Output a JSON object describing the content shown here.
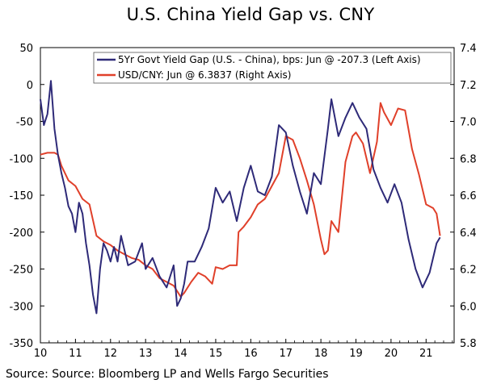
{
  "chart_data": {
    "type": "line",
    "title": "U.S. China Yield Gap vs. CNY",
    "source": "Source: Source: Bloomberg LP and Wells Fargo Securities",
    "grid": false,
    "legend_placement": "top-right",
    "x_axis": {
      "min": 10,
      "max": 21.8,
      "ticks": [
        "10",
        "11",
        "12",
        "13",
        "14",
        "15",
        "16",
        "17",
        "18",
        "19",
        "20",
        "21"
      ]
    },
    "y_left": {
      "min": -350,
      "max": 50,
      "ticks": [
        "50",
        "0",
        "-50",
        "-100",
        "-150",
        "-200",
        "-250",
        "-300",
        "-350"
      ]
    },
    "y_right": {
      "min": 5.8,
      "max": 7.4,
      "ticks": [
        "7.4",
        "7.2",
        "7.0",
        "6.8",
        "6.6",
        "6.4",
        "6.2",
        "6.0",
        "5.8"
      ]
    },
    "series": [
      {
        "name": "5Yr Govt Yield Gap (U.S. - China), bps: Jun @ -207.3 (Left Axis)",
        "axis": "left",
        "color": "#2e2a78",
        "x": [
          10.0,
          10.1,
          10.2,
          10.3,
          10.4,
          10.5,
          10.6,
          10.7,
          10.8,
          10.9,
          11.0,
          11.1,
          11.2,
          11.3,
          11.4,
          11.5,
          11.6,
          11.7,
          11.8,
          11.9,
          12.0,
          12.1,
          12.2,
          12.3,
          12.5,
          12.7,
          12.9,
          13.0,
          13.2,
          13.4,
          13.6,
          13.8,
          13.9,
          14.0,
          14.1,
          14.2,
          14.4,
          14.6,
          14.8,
          15.0,
          15.2,
          15.4,
          15.6,
          15.8,
          16.0,
          16.2,
          16.4,
          16.6,
          16.8,
          17.0,
          17.2,
          17.4,
          17.6,
          17.8,
          18.0,
          18.2,
          18.3,
          18.5,
          18.7,
          18.9,
          19.1,
          19.3,
          19.5,
          19.7,
          19.9,
          20.1,
          20.3,
          20.5,
          20.7,
          20.9,
          21.1,
          21.3,
          21.4
        ],
        "values": [
          -20,
          -55,
          -40,
          5,
          -60,
          -95,
          -120,
          -140,
          -165,
          -175,
          -200,
          -160,
          -175,
          -215,
          -245,
          -285,
          -310,
          -250,
          -215,
          -225,
          -240,
          -220,
          -240,
          -205,
          -245,
          -240,
          -215,
          -250,
          -235,
          -260,
          -275,
          -245,
          -300,
          -290,
          -270,
          -240,
          -240,
          -220,
          -195,
          -140,
          -160,
          -145,
          -185,
          -140,
          -110,
          -145,
          -150,
          -125,
          -55,
          -65,
          -110,
          -145,
          -175,
          -120,
          -135,
          -60,
          -20,
          -70,
          -45,
          -25,
          -45,
          -60,
          -115,
          -140,
          -160,
          -135,
          -160,
          -210,
          -250,
          -275,
          -255,
          -215,
          -207
        ]
      },
      {
        "name": "USD/CNY: Jun @ 6.3837 (Right Axis)",
        "axis": "right",
        "color": "#e0402a",
        "x": [
          10.0,
          10.2,
          10.4,
          10.5,
          10.6,
          10.8,
          11.0,
          11.2,
          11.4,
          11.6,
          11.8,
          12.0,
          12.2,
          12.4,
          12.6,
          12.8,
          13.0,
          13.2,
          13.4,
          13.6,
          13.8,
          14.0,
          14.1,
          14.3,
          14.5,
          14.7,
          14.9,
          15.0,
          15.2,
          15.4,
          15.6,
          15.65,
          15.8,
          16.0,
          16.2,
          16.4,
          16.6,
          16.8,
          17.0,
          17.2,
          17.4,
          17.6,
          17.8,
          18.0,
          18.1,
          18.2,
          18.3,
          18.5,
          18.7,
          18.9,
          19.0,
          19.2,
          19.4,
          19.6,
          19.7,
          19.8,
          20.0,
          20.2,
          20.4,
          20.6,
          20.8,
          21.0,
          21.2,
          21.3,
          21.4
        ],
        "values": [
          6.82,
          6.83,
          6.83,
          6.82,
          6.76,
          6.68,
          6.65,
          6.58,
          6.55,
          6.38,
          6.35,
          6.33,
          6.3,
          6.28,
          6.26,
          6.25,
          6.22,
          6.2,
          6.15,
          6.13,
          6.11,
          6.05,
          6.07,
          6.13,
          6.18,
          6.16,
          6.12,
          6.21,
          6.2,
          6.22,
          6.22,
          6.4,
          6.43,
          6.48,
          6.55,
          6.58,
          6.65,
          6.72,
          6.92,
          6.9,
          6.8,
          6.68,
          6.55,
          6.36,
          6.28,
          6.3,
          6.46,
          6.4,
          6.78,
          6.92,
          6.94,
          6.88,
          6.72,
          6.89,
          7.1,
          7.05,
          6.98,
          7.07,
          7.06,
          6.85,
          6.71,
          6.55,
          6.53,
          6.5,
          6.38
        ]
      }
    ]
  }
}
